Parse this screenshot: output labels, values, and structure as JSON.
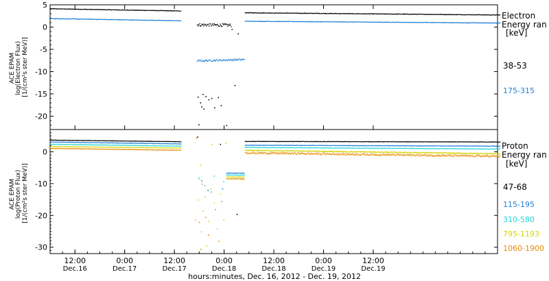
{
  "chart_data": [
    {
      "type": "scatter",
      "panel": "electron",
      "ylabel": [
        "ACE EPAM",
        "log(Electron Flux)",
        "[1/(cm²s ster MeV)]"
      ],
      "ylim": [
        -23,
        5
      ],
      "yticks": [
        5,
        0,
        -5,
        -10,
        -15,
        -20
      ],
      "legend_title": [
        "Electron",
        "Energy ran",
        "[keV]"
      ],
      "series": [
        {
          "name": "38-53",
          "color": "#000000",
          "segments": [
            {
              "t": [
                0,
                31.5
              ],
              "y": [
                4.2,
                3.7
              ],
              "noise": 0.05
            },
            {
              "t": [
                35.4,
                43.6
              ],
              "y": [
                0.6,
                0.5
              ],
              "noise": 0.35
            },
            {
              "t": [
                47.0,
                108.5
              ],
              "y": [
                3.3,
                2.8
              ],
              "noise": 0.05
            }
          ],
          "scatter": [
            [
              35.6,
              -15.6
            ],
            [
              36.2,
              -16.9
            ],
            [
              36.8,
              -15.0
            ],
            [
              37.5,
              -15.5
            ],
            [
              38.2,
              -16.2
            ],
            [
              38.9,
              -15.9
            ],
            [
              39.6,
              -18.0
            ],
            [
              40.5,
              -15.7
            ],
            [
              41.2,
              -17.5
            ],
            [
              35.8,
              -21.8
            ],
            [
              36.5,
              -17.8
            ],
            [
              42.5,
              -22.0
            ],
            [
              44.5,
              -13.0
            ],
            [
              45.3,
              -1.4
            ],
            [
              43.8,
              -0.4
            ],
            [
              37.0,
              -18.3
            ]
          ]
        },
        {
          "name": "175-315",
          "color": "#1f7fd6",
          "segments": [
            {
              "t": [
                0,
                31.5
              ],
              "y": [
                2.0,
                1.5
              ],
              "noise": 0.05
            },
            {
              "t": [
                35.4,
                46.8
              ],
              "y": [
                -7.5,
                -7.2
              ],
              "noise": 0.2
            },
            {
              "t": [
                47.0,
                108.5
              ],
              "y": [
                1.4,
                1.0
              ],
              "noise": 0.05
            }
          ],
          "scatter": []
        }
      ]
    },
    {
      "type": "scatter",
      "panel": "proton",
      "ylabel": [
        "ACE EPAM",
        "log(Proton Flux)",
        "[1/(cm²s ster MeV)]"
      ],
      "ylim": [
        -32,
        7
      ],
      "yticks": [
        0,
        -10,
        -20,
        -30
      ],
      "legend_title": [
        "Proton",
        "Energy ran",
        "[keV]"
      ],
      "series": [
        {
          "name": "47-68",
          "color": "#000000",
          "segments": [
            {
              "t": [
                0,
                31.5
              ],
              "y": [
                3.8,
                3.3
              ],
              "noise": 0.05
            },
            {
              "t": [
                47.0,
                108.5
              ],
              "y": [
                3.4,
                3.2
              ],
              "noise": 0.05
            }
          ],
          "scatter": [
            [
              35.5,
              4.8
            ],
            [
              41.0,
              2.5
            ],
            [
              45.0,
              -19.5
            ]
          ]
        },
        {
          "name": "115-195",
          "color": "#1f7fd6",
          "segments": [
            {
              "t": [
                0,
                31.5
              ],
              "y": [
                3.2,
                2.6
              ],
              "noise": 0.05
            },
            {
              "t": [
                42.5,
                46.8
              ],
              "y": [
                -6.6,
                -6.6
              ],
              "noise": 0.1
            },
            {
              "t": [
                47.0,
                108.5
              ],
              "y": [
                2.2,
                1.9
              ],
              "noise": 0.05
            }
          ],
          "scatter": [
            [
              36.5,
              -9.0
            ],
            [
              38.0,
              -12.0
            ],
            [
              41.5,
              -11.5
            ]
          ]
        },
        {
          "name": "310-580",
          "color": "#22d4d4",
          "segments": [
            {
              "t": [
                0,
                31.5
              ],
              "y": [
                2.5,
                1.9
              ],
              "noise": 0.05
            },
            {
              "t": [
                42.5,
                46.8
              ],
              "y": [
                -7.2,
                -7.2
              ],
              "noise": 0.1
            },
            {
              "t": [
                47.0,
                108.5
              ],
              "y": [
                1.5,
                1.0
              ],
              "noise": 0.05
            }
          ],
          "scatter": [
            [
              35.8,
              -8.0
            ],
            [
              37.2,
              -10.5
            ],
            [
              39.5,
              -7.5
            ],
            [
              41.8,
              -9.2
            ]
          ]
        },
        {
          "name": "795-1193",
          "color": "#d4d400",
          "segments": [
            {
              "t": [
                0,
                31.5
              ],
              "y": [
                1.8,
                1.3
              ],
              "noise": 0.05
            },
            {
              "t": [
                42.5,
                46.8
              ],
              "y": [
                -7.8,
                -7.8
              ],
              "noise": 0.1
            },
            {
              "t": [
                47.0,
                108.5
              ],
              "y": [
                0.6,
                -0.5
              ],
              "noise": 0.15
            }
          ],
          "scatter": [
            [
              35.0,
              -21.3
            ],
            [
              35.6,
              -15.0
            ],
            [
              36.0,
              -8.5
            ],
            [
              36.4,
              -25.0
            ],
            [
              36.8,
              -18.5
            ],
            [
              37.3,
              -14.0
            ],
            [
              37.7,
              -29.5
            ],
            [
              38.2,
              -21.7
            ],
            [
              38.6,
              -11.5
            ],
            [
              39.0,
              2.5
            ],
            [
              39.5,
              -16.0
            ],
            [
              40.2,
              -24.0
            ],
            [
              41.0,
              -13.0
            ],
            [
              41.8,
              -21.2
            ],
            [
              42.3,
              2.8
            ],
            [
              36.2,
              -4.0
            ]
          ]
        },
        {
          "name": "1060-1900",
          "color": "#e88a00",
          "segments": [
            {
              "t": [
                0,
                31.5
              ],
              "y": [
                1.2,
                0.6
              ],
              "noise": 0.05
            },
            {
              "t": [
                42.5,
                46.8
              ],
              "y": [
                -8.4,
                -8.4
              ],
              "noise": 0.1
            },
            {
              "t": [
                47.0,
                108.5
              ],
              "y": [
                -0.2,
                -1.3
              ],
              "noise": 0.3
            }
          ],
          "scatter": [
            [
              35.2,
              4.5
            ],
            [
              35.9,
              -22.0
            ],
            [
              36.6,
              -10.0
            ],
            [
              37.4,
              -20.5
            ],
            [
              38.1,
              -26.0
            ],
            [
              38.8,
              -12.5
            ],
            [
              39.8,
              -18.0
            ],
            [
              40.6,
              -28.0
            ],
            [
              41.3,
              -15.5
            ],
            [
              36.3,
              -30.5
            ]
          ]
        }
      ]
    }
  ],
  "x_axis": {
    "range_hours": [
      6,
      114
    ],
    "title": "hours:minutes, Dec. 16, 2012 - Dec. 19, 2012",
    "ticks": [
      {
        "t": 12,
        "time": "12:00",
        "day": "Dec.16"
      },
      {
        "t": 24,
        "time": "0:00",
        "day": "Dec.17"
      },
      {
        "t": 36,
        "time": "12:00",
        "day": "Dec.17"
      },
      {
        "t": 48,
        "time": "0:00",
        "day": "Dec.18"
      },
      {
        "t": 60,
        "time": "12:00",
        "day": "Dec.18"
      },
      {
        "t": 72,
        "time": "0:00",
        "day": "Dec.19"
      },
      {
        "t": 84,
        "time": "12:00",
        "day": "Dec.19"
      }
    ]
  }
}
